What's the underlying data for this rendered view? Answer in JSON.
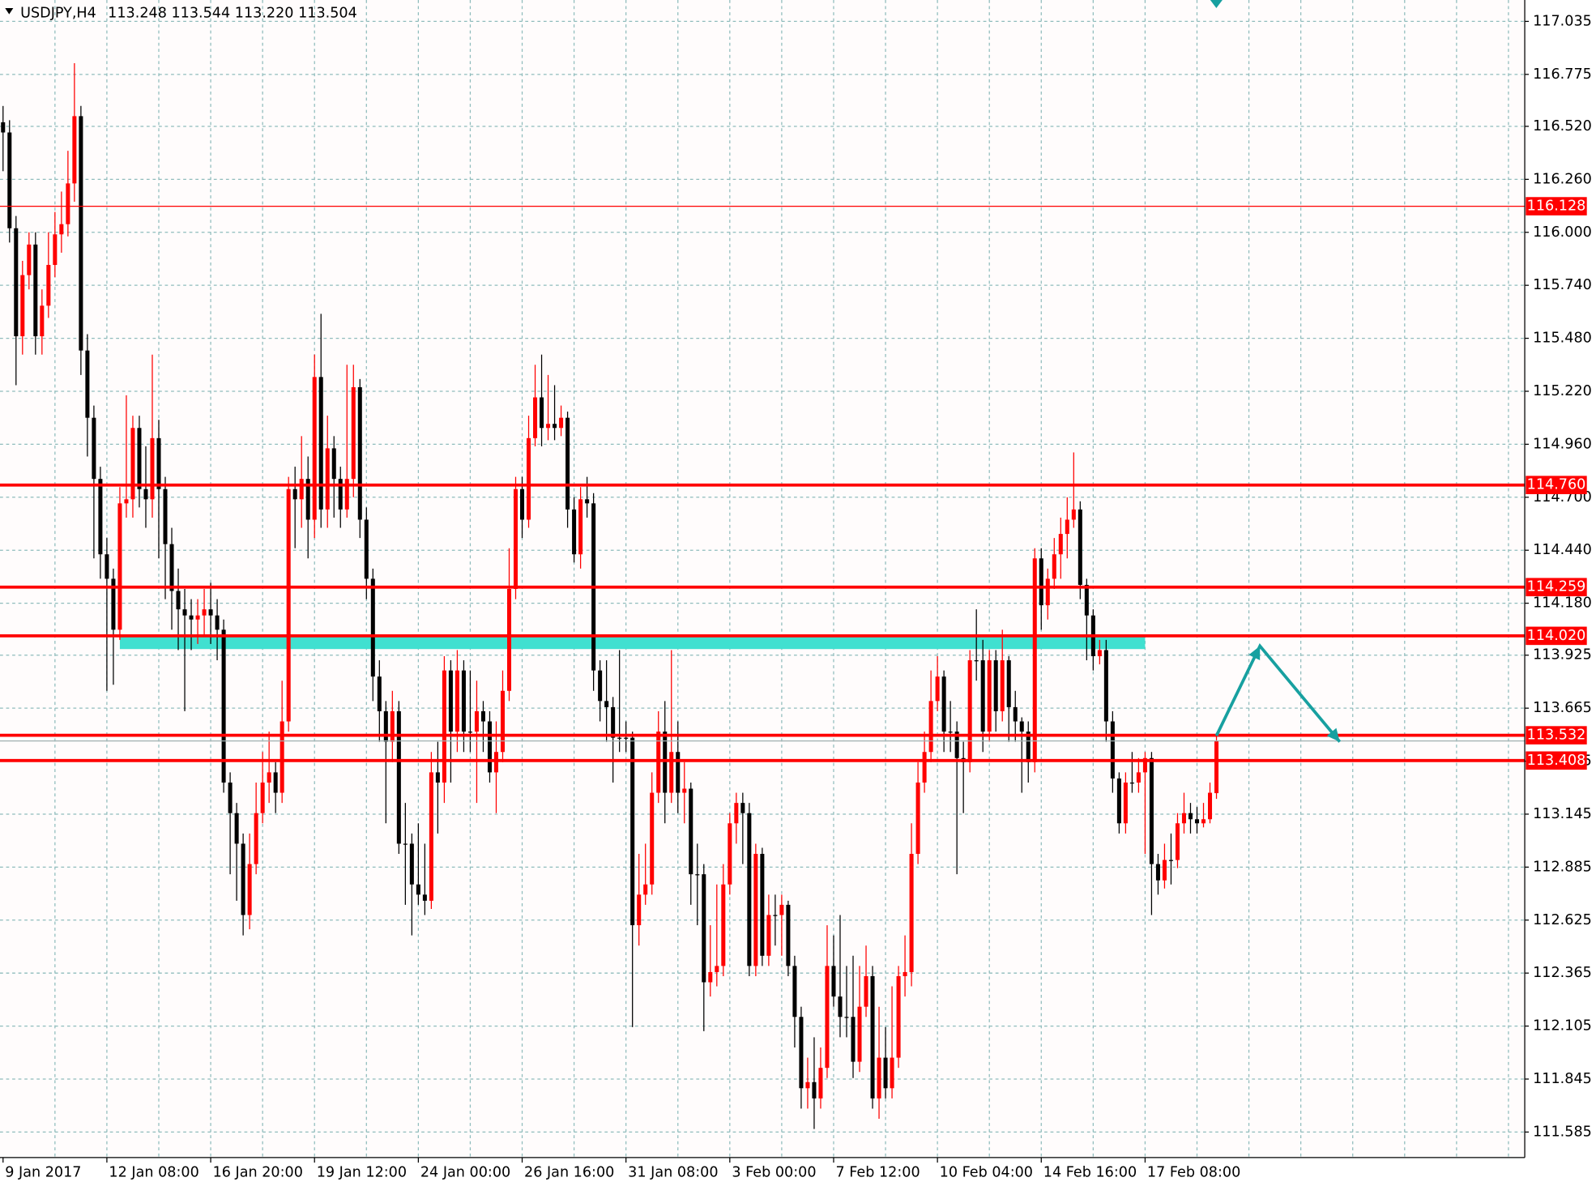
{
  "chart_data": {
    "type": "candlestick",
    "header": {
      "symbol": "USDJPY,H4",
      "quote": "113.248 113.544 113.220 113.504"
    },
    "categories": [
      "9 Jan 2017",
      null,
      null,
      null,
      null,
      null,
      null,
      null,
      null,
      null,
      null,
      null,
      null,
      null,
      null,
      null,
      "12 Jan 08:00",
      null,
      null,
      null,
      null,
      null,
      null,
      null,
      null,
      null,
      null,
      null,
      null,
      null,
      null,
      null,
      "16 Jan 20:00",
      null,
      null,
      null,
      null,
      null,
      null,
      null,
      null,
      null,
      null,
      null,
      null,
      null,
      null,
      null,
      "19 Jan 12:00",
      null,
      null,
      null,
      null,
      null,
      null,
      null,
      null,
      null,
      null,
      null,
      null,
      null,
      null,
      null,
      "24 Jan 00:00",
      null,
      null,
      null,
      null,
      null,
      null,
      null,
      null,
      null,
      null,
      null,
      null,
      null,
      null,
      null,
      "26 Jan 16:00",
      null,
      null,
      null,
      null,
      null,
      null,
      null,
      null,
      null,
      null,
      null,
      null,
      null,
      null,
      null,
      "31 Jan 08:00",
      null,
      null,
      null,
      null,
      null,
      null,
      null,
      null,
      null,
      null,
      null,
      null,
      null,
      null,
      null,
      "3 Feb 00:00",
      null,
      null,
      null,
      null,
      null,
      null,
      null,
      null,
      null,
      null,
      null,
      null,
      null,
      null,
      null,
      "7 Feb 12:00",
      null,
      null,
      null,
      null,
      null,
      null,
      null,
      null,
      null,
      null,
      null,
      null,
      null,
      null,
      null,
      "10 Feb 04:00",
      null,
      null,
      null,
      null,
      null,
      null,
      null,
      null,
      null,
      null,
      null,
      null,
      null,
      null,
      null,
      "14 Feb 16:00",
      null,
      null,
      null,
      null,
      null,
      null,
      null,
      null,
      null,
      null,
      null,
      null,
      null,
      null,
      null,
      "17 Feb 08:00",
      null,
      null,
      null,
      null,
      null,
      null,
      null,
      null,
      null,
      null,
      null
    ],
    "open": [
      116.54,
      116.49,
      116.02,
      115.49,
      115.79,
      115.94,
      115.49,
      115.64,
      115.84,
      115.99,
      116.04,
      116.24,
      116.57,
      115.42,
      115.09,
      114.79,
      114.42,
      114.3,
      114.05,
      114.67,
      114.69,
      115.04,
      114.74,
      114.69,
      114.99,
      114.74,
      114.47,
      114.24,
      114.15,
      114.12,
      114.1,
      114.12,
      114.15,
      114.12,
      114.05,
      113.3,
      113.15,
      113.0,
      112.65,
      112.9,
      113.15,
      113.3,
      113.35,
      113.25,
      113.6,
      114.74,
      114.69,
      114.79,
      114.59,
      115.29,
      114.64,
      114.94,
      114.79,
      114.64,
      114.79,
      115.24,
      114.59,
      114.3,
      113.82,
      113.65,
      113.5,
      113.65,
      113.0,
      113.0,
      112.8,
      112.75,
      112.72,
      113.35,
      113.3,
      113.85,
      113.55,
      113.85,
      113.55,
      113.55,
      113.65,
      113.6,
      113.35,
      113.45,
      113.75,
      114.25,
      114.74,
      114.59,
      114.99,
      115.19,
      115.04,
      115.06,
      115.04,
      115.09,
      114.64,
      114.42,
      114.69,
      114.67,
      113.85,
      113.7,
      113.67,
      113.52,
      113.52,
      113.52,
      112.6,
      112.75,
      112.8,
      113.25,
      113.55,
      113.25,
      113.45,
      113.25,
      113.27,
      112.85,
      112.85,
      112.32,
      112.37,
      112.4,
      112.8,
      113.1,
      113.2,
      113.15,
      112.4,
      112.95,
      112.45,
      112.65,
      112.65,
      112.7,
      112.4,
      112.15,
      111.8,
      111.83,
      111.75,
      111.9,
      112.4,
      112.25,
      112.15,
      112.15,
      111.93,
      112.2,
      112.35,
      111.75,
      111.95,
      111.8,
      111.95,
      112.35,
      112.37,
      112.95,
      113.3,
      113.45,
      113.7,
      113.82,
      113.55,
      113.55,
      113.42,
      113.4,
      113.9,
      113.9,
      113.55,
      113.9,
      113.65,
      113.9,
      113.67,
      113.6,
      113.55,
      113.4,
      114.4,
      114.17,
      114.3,
      114.42,
      114.52,
      114.59,
      114.64,
      114.27,
      114.12,
      113.92,
      113.95,
      113.6,
      113.32,
      113.1,
      113.3,
      113.3,
      113.35,
      113.42,
      112.9,
      112.82,
      112.92,
      112.92,
      113.1,
      113.15,
      113.12,
      113.1,
      113.12,
      113.248
    ],
    "high": [
      116.62,
      116.55,
      116.08,
      115.86,
      116.0,
      116.0,
      115.72,
      116.0,
      116.1,
      116.2,
      116.4,
      116.83,
      116.62,
      115.5,
      115.15,
      114.85,
      114.5,
      114.35,
      114.75,
      115.2,
      115.1,
      115.1,
      114.95,
      115.4,
      115.08,
      114.8,
      114.55,
      114.35,
      114.25,
      114.2,
      114.2,
      114.25,
      114.28,
      114.2,
      114.1,
      113.35,
      113.2,
      113.05,
      113.05,
      113.3,
      113.45,
      113.55,
      113.4,
      113.8,
      114.8,
      114.85,
      115.0,
      114.9,
      115.4,
      115.6,
      115.1,
      115.0,
      114.85,
      115.35,
      115.35,
      115.28,
      114.65,
      114.35,
      113.9,
      113.7,
      113.75,
      113.7,
      113.2,
      113.05,
      113.1,
      113.0,
      113.45,
      113.5,
      113.92,
      113.9,
      113.95,
      113.9,
      113.85,
      113.8,
      113.7,
      113.65,
      113.6,
      113.85,
      114.45,
      114.8,
      114.8,
      115.1,
      115.35,
      115.4,
      115.3,
      115.25,
      115.15,
      115.12,
      114.7,
      114.75,
      114.8,
      114.72,
      113.9,
      113.9,
      113.72,
      113.95,
      113.6,
      113.55,
      112.95,
      113.0,
      113.35,
      113.65,
      113.7,
      113.95,
      113.6,
      113.4,
      113.3,
      113.0,
      112.9,
      112.6,
      112.8,
      112.9,
      113.15,
      113.25,
      113.25,
      113.2,
      113.0,
      112.98,
      112.75,
      112.75,
      112.75,
      112.72,
      112.45,
      112.2,
      111.95,
      112.05,
      112.0,
      112.6,
      112.55,
      112.65,
      112.4,
      112.45,
      112.4,
      112.5,
      112.4,
      112.2,
      112.1,
      112.3,
      112.4,
      112.55,
      113.1,
      113.4,
      113.55,
      113.85,
      113.92,
      113.85,
      113.7,
      113.6,
      113.5,
      113.95,
      114.15,
      114.0,
      113.95,
      113.95,
      114.05,
      113.92,
      113.75,
      113.62,
      113.6,
      114.45,
      114.45,
      114.35,
      114.5,
      114.6,
      114.7,
      114.92,
      114.68,
      114.3,
      114.15,
      114.0,
      114.0,
      113.65,
      113.35,
      113.35,
      113.45,
      113.42,
      113.45,
      113.45,
      112.95,
      113.0,
      113.05,
      113.15,
      113.25,
      113.2,
      113.18,
      113.2,
      113.3,
      113.544
    ],
    "low": [
      116.3,
      115.95,
      115.25,
      115.4,
      115.72,
      115.4,
      115.4,
      115.58,
      115.78,
      115.9,
      115.98,
      116.15,
      115.3,
      114.9,
      114.4,
      114.3,
      113.75,
      113.78,
      114.0,
      114.6,
      114.6,
      114.65,
      114.55,
      114.6,
      114.4,
      114.2,
      114.05,
      113.95,
      113.65,
      113.95,
      113.98,
      114.02,
      113.98,
      113.9,
      113.25,
      112.85,
      112.72,
      112.55,
      112.58,
      112.85,
      113.1,
      113.2,
      113.15,
      113.2,
      113.55,
      114.45,
      114.55,
      114.4,
      114.5,
      114.55,
      114.55,
      114.6,
      114.55,
      114.6,
      114.7,
      114.5,
      114.2,
      113.7,
      113.5,
      113.1,
      113.4,
      112.95,
      112.7,
      112.55,
      112.7,
      112.65,
      112.68,
      113.05,
      113.2,
      113.3,
      113.45,
      113.45,
      113.45,
      113.2,
      113.45,
      113.3,
      113.15,
      113.4,
      113.7,
      114.2,
      114.5,
      114.55,
      114.95,
      114.95,
      114.98,
      114.98,
      115.0,
      114.55,
      114.38,
      114.35,
      114.6,
      113.75,
      113.6,
      113.5,
      113.3,
      113.45,
      113.45,
      112.1,
      112.5,
      112.7,
      112.75,
      113.2,
      113.1,
      113.2,
      113.15,
      113.1,
      112.7,
      112.6,
      112.08,
      112.25,
      112.3,
      112.35,
      112.75,
      113.0,
      112.9,
      112.35,
      112.35,
      112.4,
      112.4,
      112.5,
      112.45,
      112.35,
      112.0,
      111.7,
      111.7,
      111.6,
      111.7,
      111.85,
      112.2,
      112.05,
      112.05,
      111.85,
      111.88,
      112.15,
      111.7,
      111.65,
      111.75,
      111.75,
      111.9,
      112.25,
      112.3,
      112.9,
      113.25,
      113.4,
      113.65,
      113.45,
      113.45,
      112.85,
      113.15,
      113.35,
      113.8,
      113.45,
      113.5,
      113.55,
      113.6,
      113.5,
      113.5,
      113.25,
      113.3,
      113.35,
      114.05,
      114.1,
      114.25,
      114.3,
      114.4,
      114.55,
      114.2,
      113.9,
      113.85,
      113.88,
      113.5,
      113.25,
      113.05,
      113.05,
      113.25,
      113.25,
      112.95,
      112.65,
      112.75,
      112.78,
      112.8,
      112.88,
      113.05,
      113.05,
      113.05,
      113.08,
      113.1,
      113.22
    ],
    "close": [
      116.49,
      116.02,
      115.49,
      115.79,
      115.94,
      115.49,
      115.64,
      115.84,
      115.99,
      116.04,
      116.24,
      116.57,
      115.42,
      115.09,
      114.79,
      114.42,
      114.3,
      114.05,
      114.67,
      114.69,
      115.04,
      114.74,
      114.69,
      114.99,
      114.74,
      114.47,
      114.24,
      114.15,
      114.12,
      114.1,
      114.12,
      114.15,
      114.12,
      114.05,
      113.3,
      113.15,
      113.0,
      112.65,
      112.9,
      113.15,
      113.3,
      113.35,
      113.25,
      113.6,
      114.74,
      114.69,
      114.79,
      114.59,
      115.29,
      114.64,
      114.94,
      114.79,
      114.64,
      114.79,
      115.24,
      114.59,
      114.3,
      113.82,
      113.65,
      113.5,
      113.65,
      113.0,
      113.0,
      112.8,
      112.75,
      112.72,
      113.35,
      113.3,
      113.85,
      113.55,
      113.85,
      113.55,
      113.55,
      113.65,
      113.6,
      113.35,
      113.45,
      113.75,
      114.25,
      114.74,
      114.59,
      114.99,
      115.19,
      115.04,
      115.06,
      115.04,
      115.09,
      114.64,
      114.42,
      114.69,
      114.67,
      113.85,
      113.7,
      113.67,
      113.52,
      113.52,
      113.52,
      112.6,
      112.75,
      112.8,
      113.25,
      113.55,
      113.25,
      113.45,
      113.25,
      113.27,
      112.85,
      112.85,
      112.32,
      112.37,
      112.4,
      112.8,
      113.1,
      113.2,
      113.15,
      112.4,
      112.95,
      112.45,
      112.65,
      112.65,
      112.7,
      112.4,
      112.15,
      111.8,
      111.83,
      111.75,
      111.9,
      112.4,
      112.25,
      112.15,
      112.15,
      111.93,
      112.2,
      112.35,
      111.75,
      111.95,
      111.8,
      111.95,
      112.35,
      112.37,
      112.95,
      113.3,
      113.45,
      113.7,
      113.82,
      113.55,
      113.55,
      113.42,
      113.4,
      113.9,
      113.9,
      113.55,
      113.9,
      113.65,
      113.9,
      113.67,
      113.6,
      113.55,
      113.4,
      114.4,
      114.17,
      114.3,
      114.42,
      114.52,
      114.59,
      114.64,
      114.27,
      114.12,
      113.92,
      113.95,
      113.6,
      113.32,
      113.1,
      113.3,
      113.3,
      113.35,
      113.42,
      112.9,
      112.82,
      112.92,
      112.92,
      113.1,
      113.15,
      113.12,
      113.1,
      113.12,
      113.25,
      113.504
    ],
    "up_color": "#ff0000",
    "down_color": "#000000",
    "ylim": [
      111.46,
      117.14
    ],
    "yticks": [
      117.035,
      116.775,
      {
        "value": 116.52,
        "label": "116.520"
      },
      {
        "value": 116.26,
        "label": "116.260"
      },
      {
        "value": 116.0,
        "label": "116.000"
      },
      {
        "value": 115.74,
        "label": "115.740"
      },
      {
        "value": 115.48,
        "label": "115.480"
      },
      {
        "value": 115.22,
        "label": "115.220"
      },
      {
        "value": 114.96,
        "label": "114.960"
      },
      {
        "value": 114.7,
        "label": "114.700"
      },
      {
        "value": 114.44,
        "label": "114.440"
      },
      {
        "value": 114.18,
        "label": "114.180"
      },
      113.925,
      113.665,
      113.405,
      113.145,
      112.885,
      112.625,
      112.365,
      112.105,
      111.845,
      111.585
    ],
    "grid": true,
    "levels": [
      {
        "value": 116.128,
        "label": "116.128",
        "weight": "thin"
      },
      {
        "value": 114.76,
        "label": "114.760",
        "weight": "bold"
      },
      {
        "value": 114.259,
        "label": "114.259",
        "weight": "bold"
      },
      {
        "value": 114.02,
        "label": "114.020",
        "weight": "bold"
      },
      {
        "value": 113.532,
        "label": "113.532",
        "weight": "bold"
      },
      {
        "value": 113.408,
        "label": "113.408",
        "weight": "bold"
      }
    ],
    "level_color": "#ff0000",
    "zone": {
      "from": 18,
      "to": 176,
      "top": 114.02,
      "bottom": 113.955,
      "color": "#40e0d0"
    },
    "arrow": {
      "x": [
        187,
        193.7,
        206
      ],
      "y": [
        113.53,
        113.97,
        113.5
      ],
      "color": "#17a0a0"
    }
  }
}
